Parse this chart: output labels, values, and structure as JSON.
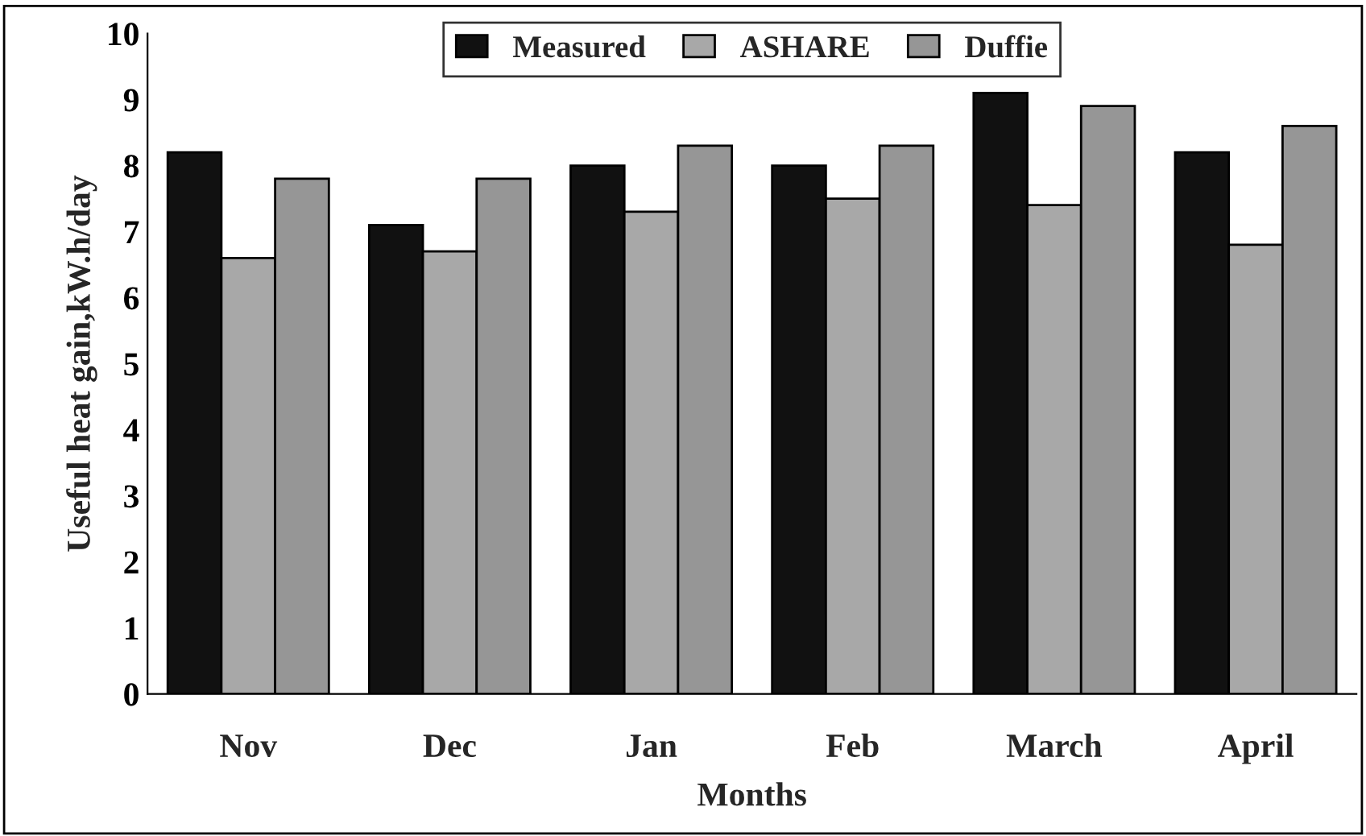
{
  "chart_data": {
    "type": "bar",
    "xlabel": "Months",
    "ylabel": "Useful heat gain,kW.h/day",
    "categories": [
      "Nov",
      "Dec",
      "Jan",
      "Feb",
      "March",
      "April"
    ],
    "series": [
      {
        "name": "Measured",
        "color": "#111111",
        "values": [
          8.2,
          7.1,
          8.0,
          8.0,
          9.1,
          8.2
        ]
      },
      {
        "name": "ASHARE",
        "color": "#a8a8a8",
        "values": [
          6.6,
          6.7,
          7.3,
          7.5,
          7.4,
          6.8
        ]
      },
      {
        "name": "Duffie",
        "color": "#969696",
        "values": [
          7.8,
          7.8,
          8.3,
          8.3,
          8.9,
          8.6
        ]
      }
    ],
    "ylim": [
      0,
      10
    ],
    "yticks": [
      0,
      1,
      2,
      3,
      4,
      5,
      6,
      7,
      8,
      9,
      10
    ],
    "legend": "top",
    "grid": false
  }
}
